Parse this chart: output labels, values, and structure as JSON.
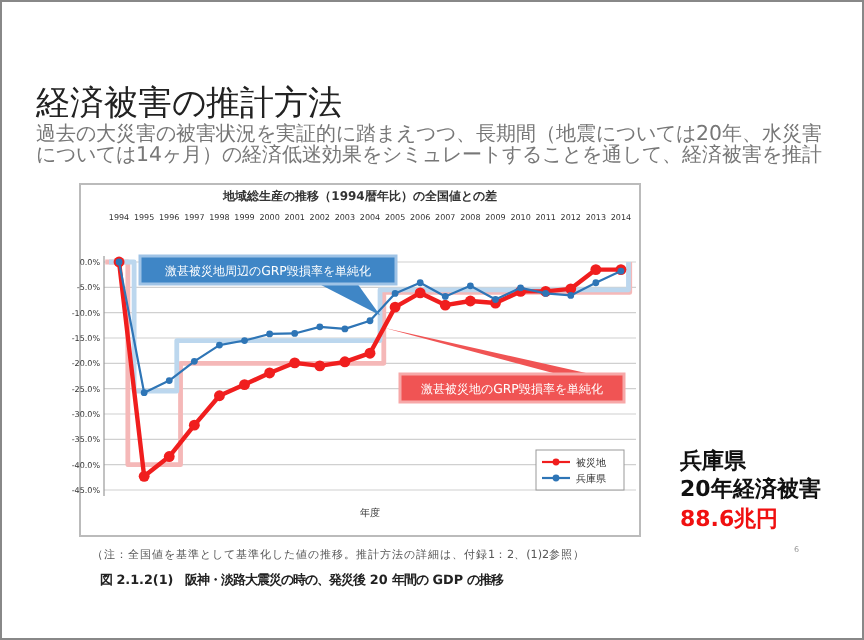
{
  "chart_data": {
    "type": "line",
    "title": "地域総生産の推移（1994暦年比）の全国値との差",
    "xlabel": "年度",
    "x": [
      1994,
      1995,
      1996,
      1997,
      1998,
      1999,
      2000,
      2001,
      2002,
      2003,
      2004,
      2005,
      2006,
      2007,
      2008,
      2009,
      2010,
      2011,
      2012,
      2013,
      2014
    ],
    "xlim": [
      1993.4,
      2014.6
    ],
    "xticks": [
      1994,
      1995,
      1996,
      1997,
      1998,
      1999,
      2000,
      2001,
      2002,
      2003,
      2004,
      2005,
      2006,
      2007,
      2008,
      2009,
      2010,
      2011,
      2012,
      2013,
      2014
    ],
    "ylim": [
      -45,
      0
    ],
    "yticks": [
      {
        "value": 0,
        "label": "0.0%"
      },
      {
        "value": -5,
        "label": "-5.0%"
      },
      {
        "value": -10,
        "label": "-10.0%"
      },
      {
        "value": -15,
        "label": "-15.0%"
      },
      {
        "value": -20,
        "label": "-20.0%"
      },
      {
        "value": -25,
        "label": "-25.0%"
      },
      {
        "value": -30,
        "label": "-30.0%"
      },
      {
        "value": -35,
        "label": "-35.0%"
      },
      {
        "value": -40,
        "label": "-40.0%"
      },
      {
        "value": -45,
        "label": "-45.0%"
      }
    ],
    "grid": "y",
    "legend": "bottom right",
    "marker": "circle",
    "series": [
      {
        "type": "step",
        "marker": "none",
        "color": "#f5b8b8",
        "x": [
          1993.45,
          1994.35,
          1996.45,
          2004.55,
          2014.35
        ],
        "values": [
          0,
          -40,
          -20,
          -6,
          0
        ]
      },
      {
        "type": "step",
        "marker": "none",
        "color": "#bcd7ee",
        "x": [
          1993.6,
          1994.6,
          1996.3,
          2004.4,
          2014.3
        ],
        "values": [
          0,
          -25.5,
          -15.5,
          -5.5,
          0
        ]
      },
      {
        "name": "被災地",
        "color": "#f01e1e",
        "values": [
          0,
          -42.3,
          -38.4,
          -32.2,
          -26.4,
          -24.2,
          -21.9,
          -19.9,
          -20.5,
          -19.7,
          -18,
          -8.9,
          -6.1,
          -8.5,
          -7.7,
          -8.1,
          -5.8,
          -5.8,
          -5.3,
          -1.5,
          -1.5
        ]
      },
      {
        "name": "兵庫県",
        "color": "#2e75b6",
        "values": [
          0,
          -25.8,
          -23.4,
          -19.6,
          -16.4,
          -15.5,
          -14.2,
          -14.1,
          -12.8,
          -13.2,
          -11.6,
          -6.2,
          -4.1,
          -6.8,
          -4.7,
          -7.4,
          -5.1,
          -6.2,
          -6.6,
          -4.1,
          -1.8
        ]
      }
    ],
    "annotations": [
      "経済被害の推計方法",
      "過去の大災害の被害状況を実証的に踏まえつつ、長期間（地震については20年、水災害については14ヶ月）の経済低迷効果をシミュレートすることを通して、経済被害を推計",
      "激甚被災地周辺のGRP毀損率を単純化",
      "激甚被災地のGRP毀損率を単純化",
      "（注：全国値を基準として基準化した値の推移。推計方法の詳細は、付録1：2、(1)2参照）",
      "図 2.1.2(1)　阪神・淡路大震災の時の、発災後 20 年間の GDP の推移",
      "兵庫県",
      "20年経済被害",
      "88.6兆円",
      "6"
    ]
  }
}
